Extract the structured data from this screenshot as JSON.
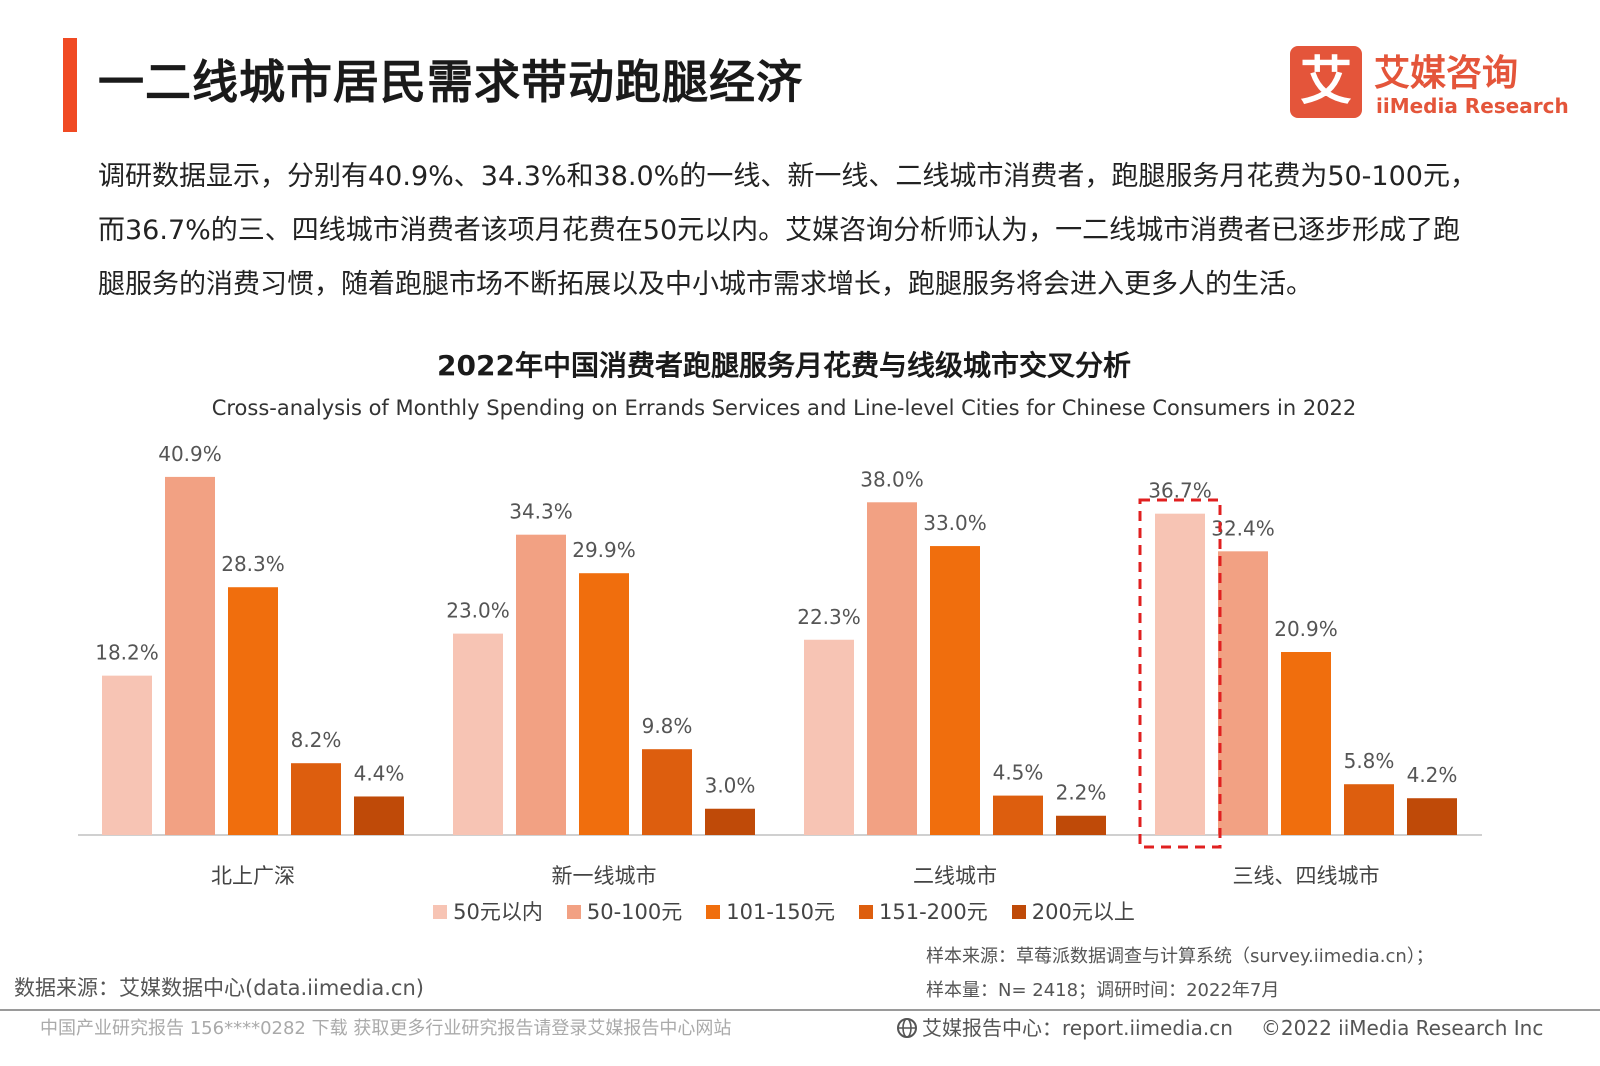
{
  "header": {
    "title": "一二线城市居民需求带动跑腿经济",
    "accent_color": "#f04a23"
  },
  "logo": {
    "glyph": "艾",
    "name_cn": "艾媒咨询",
    "name_en": "iiMedia Research",
    "brand_color": "#e4553a"
  },
  "intro": {
    "text": "调研数据显示，分别有40.9%、34.3%和38.0%的一线、新一线、二线城市消费者，跑腿服务月花费为50-100元，而36.7%的三、四线城市消费者该项月花费在50元以内。艾媒咨询分析师认为，一二线城市消费者已逐步形成了跑腿服务的消费习惯，随着跑腿市场不断拓展以及中小城市需求增长，跑腿服务将会进入更多人的生活。"
  },
  "chart_data": {
    "type": "bar",
    "title": "2022年中国消费者跑腿服务月花费与线级城市交叉分析",
    "subtitle": "Cross-analysis of Monthly Spending on Errands Services and Line-level Cities for Chinese Consumers in 2022",
    "categories": [
      "北上广深",
      "新一线城市",
      "二线城市",
      "三线、四线城市"
    ],
    "series": [
      {
        "name": "50元以内",
        "color": "#f7c4b4",
        "values": [
          18.2,
          23.0,
          22.3,
          36.7
        ]
      },
      {
        "name": "50-100元",
        "color": "#f2a183",
        "values": [
          40.9,
          34.3,
          38.0,
          32.4
        ]
      },
      {
        "name": "101-150元",
        "color": "#f06e0d",
        "values": [
          28.3,
          29.9,
          33.0,
          20.9
        ]
      },
      {
        "name": "151-200元",
        "color": "#dd5e0e",
        "values": [
          8.2,
          9.8,
          4.5,
          5.8
        ]
      },
      {
        "name": "200元以上",
        "color": "#bf4a08",
        "values": [
          4.4,
          3.0,
          2.2,
          4.2
        ]
      }
    ],
    "value_suffix": "%",
    "ylim": [
      0,
      45
    ],
    "grid": false,
    "legend": "bottom",
    "highlight": {
      "category": "三线、四线城市",
      "series": "50元以内",
      "style": "red dashed box",
      "color": "#e02020"
    }
  },
  "notes": {
    "sample_source": "样本来源：草莓派数据调查与计算系统（survey.iimedia.cn）；",
    "sample_size": "样本量：N= 2418；调研时间：2022年7月",
    "data_source": "数据来源：艾媒数据中心(data.iimedia.cn)"
  },
  "footer": {
    "watermark": "中国产业研究报告 156****0282 下载 获取更多行业研究报告请登录艾媒报告中心网站",
    "report_center": "艾媒报告中心：report.iimedia.cn",
    "copyright": "©2022  iiMedia Research  Inc"
  }
}
